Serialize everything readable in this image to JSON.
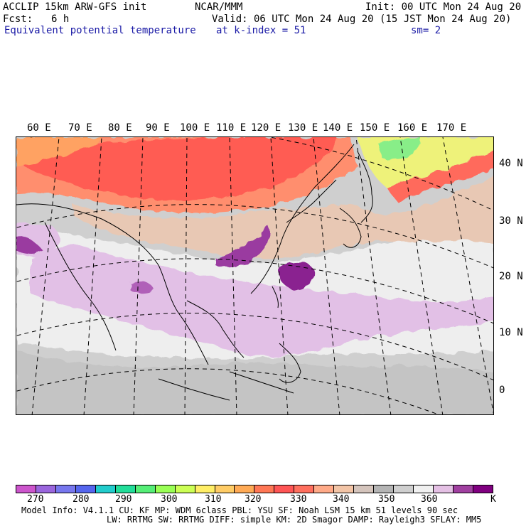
{
  "header": {
    "title": "ACCLIP 15km ARW-GFS init",
    "org": "NCAR/MMM",
    "init": "Init: 00 UTC Mon 24 Aug 20",
    "fcst_label": "Fcst:",
    "fcst_value": "6 h",
    "valid": "Valid: 06 UTC Mon 24 Aug 20 (15 JST Mon 24 Aug 20)",
    "field": "Equivalent potential temperature",
    "level": "at k-index =  51",
    "smooth": "sm= 2"
  },
  "map": {
    "lon_labels": [
      "60 E",
      "70 E",
      "80 E",
      "90 E",
      "100 E",
      "110 E",
      "120 E",
      "130 E",
      "140 E",
      "150 E",
      "160 E",
      "170 E"
    ],
    "lat_labels": [
      "40 N",
      "30 N",
      "20 N",
      "10 N",
      "0"
    ]
  },
  "colorbar": {
    "colors": [
      "#cc55cc",
      "#9a66dd",
      "#7777ee",
      "#5566ee",
      "#22cccc",
      "#22dd99",
      "#55ee77",
      "#99ff55",
      "#ccff55",
      "#ffee66",
      "#ffcc66",
      "#ffaa55",
      "#ff7755",
      "#ff5555",
      "#ff6f5e",
      "#ffaa88",
      "#f2c4a6",
      "#d4c4bc",
      "#b4b4b4",
      "#cfcfcf",
      "#f0f0f0",
      "#e4c0e4",
      "#a040a0",
      "#800080"
    ],
    "labels": [
      "270",
      "280",
      "290",
      "300",
      "310",
      "320",
      "330",
      "340",
      "350",
      "360",
      "K"
    ],
    "colors_meaning": "fill colors of colorbar segments"
  },
  "model_info": {
    "line1": "Model Info: V4.1.1    CU: KF       MP: WDM 6class  PBL: YSU       SF: Noah LSM     15 km   51 levels  90 sec",
    "line2": "LW: RRTMG   SW: RRTMG  DIFF: simple KM: 2D Smagor DAMP: Rayleigh3  SFLAY: MM5"
  }
}
